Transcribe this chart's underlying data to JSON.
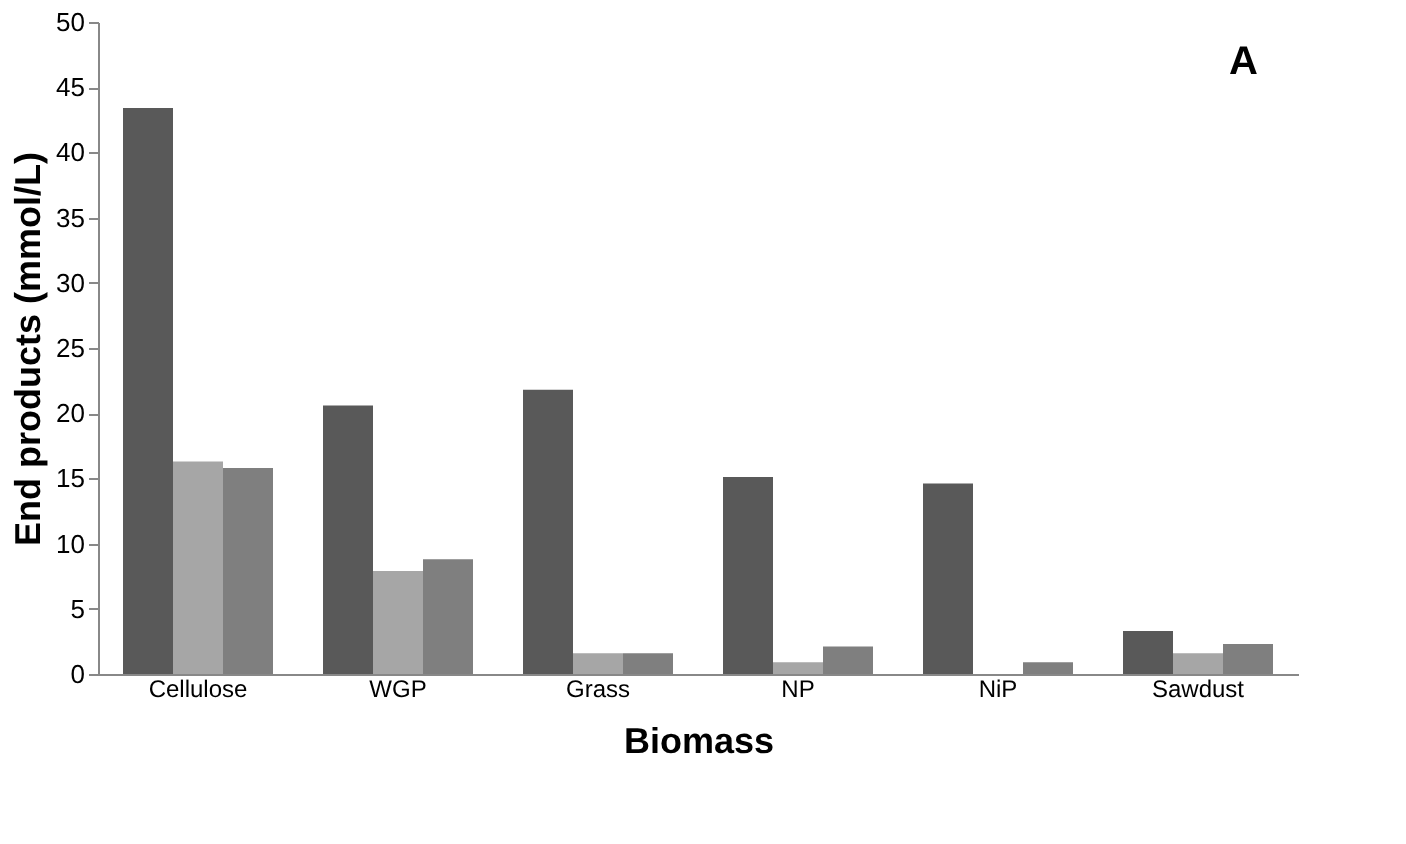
{
  "chart_data": {
    "type": "bar",
    "xlabel": "Biomass",
    "ylabel": "End products (mmol/L)",
    "annotations": [
      "A"
    ],
    "categories": [
      "Cellulose",
      "WGP",
      "Grass",
      "NP",
      "NiP",
      "Sawdust"
    ],
    "series": [
      {
        "color": "#595959",
        "values": [
          43.4,
          20.6,
          21.8,
          15.1,
          14.6,
          3.3
        ]
      },
      {
        "color": "#a6a6a6",
        "values": [
          16.3,
          7.9,
          1.6,
          0.9,
          null,
          1.6
        ]
      },
      {
        "color": "#7f7f7f",
        "values": [
          15.8,
          8.8,
          1.6,
          2.1,
          0.9,
          2.3
        ]
      }
    ],
    "ylim": [
      0,
      50
    ],
    "yticks": [
      0,
      5,
      10,
      15,
      20,
      25,
      30,
      35,
      40,
      45,
      50
    ],
    "grid": false,
    "legend": false
  }
}
